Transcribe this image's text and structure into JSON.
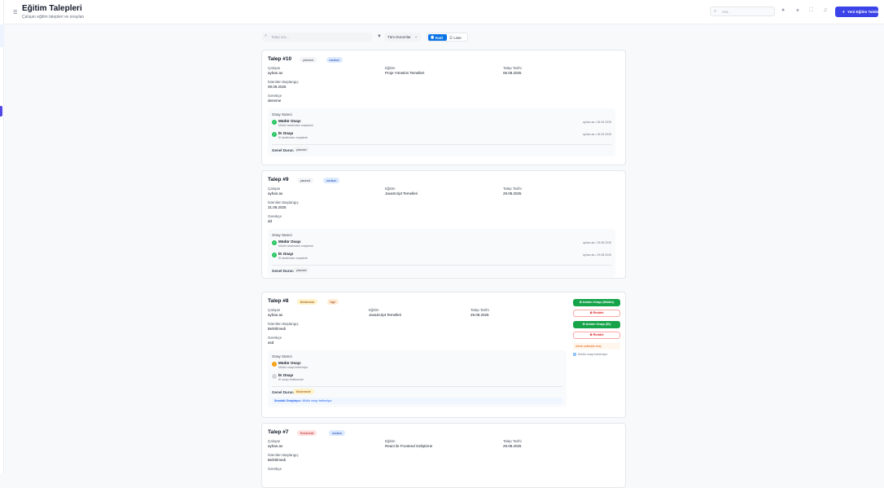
{
  "header": {
    "title": "Eğitim Talepleri",
    "subtitle": "Çalışan eğitim talepleri ve onayları",
    "search_placeholder": "Ara...",
    "new_button": "Yeni Eğitim Talebi"
  },
  "filters": {
    "search_placeholder": "Talep ara...",
    "status_select": "Tüm Durumlar",
    "view_card": "Kart",
    "view_list": "Liste"
  },
  "labels": {
    "employee": "Çalışan",
    "training": "Eğitim",
    "request_date": "Talep Tarihi",
    "desired_start": "İstenilen Başlangıç",
    "reason": "Gerekçe",
    "process": "Onay Süreci",
    "general_status": "Genel Durum:",
    "next_approver": "Sıradaki Onaylayıcı:",
    "approve_manager": "Admin Onayı (Müdür)",
    "approve_hr": "Admin Onayı (İK)",
    "reject": "Reddet",
    "admin_note": "Admin yetkisiyle onay",
    "manager_waiting_note": "Müdür onayı bekleniyor"
  },
  "cards": [
    {
      "title": "Talep #10",
      "status": "planned",
      "priority": "medium",
      "employee": "ayhan.as",
      "training": "Proje Yönetimi Temelleri",
      "request_date": "06.09.2025",
      "desired_start": "09.09.2025",
      "reason": "deneme",
      "steps": [
        {
          "name": "Müdür Onayı",
          "desc": "Müdür tarafından onaylandı",
          "meta": "ayhan.as • 06.09.2025",
          "state": "approved"
        },
        {
          "name": "İK Onayı",
          "desc": "İK tarafından onaylandı",
          "meta": "ayhan.as • 06.09.2025",
          "state": "approved"
        }
      ],
      "general": "planned"
    },
    {
      "title": "Talep #9",
      "status": "planned",
      "priority": "medium",
      "employee": "ayhan.as",
      "training": "JavaScript Temelleri",
      "request_date": "29.08.2025",
      "desired_start": "31.08.2025",
      "reason": "dd",
      "steps": [
        {
          "name": "Müdür Onayı",
          "desc": "Müdür tarafından onaylandı",
          "meta": "ayhan.as • 29.08.2025",
          "state": "approved"
        },
        {
          "name": "İK Onayı",
          "desc": "İK tarafından onaylandı",
          "meta": "ayhan.as • 29.08.2025",
          "state": "approved"
        }
      ],
      "general": "planned"
    },
    {
      "title": "Talep #8",
      "status": "Beklemede",
      "priority": "high",
      "employee": "ayhan.as",
      "training": "JavaScript Temelleri",
      "request_date": "29.08.2025",
      "desired_start": "Belirtilmedi",
      "reason": "asd",
      "steps": [
        {
          "name": "Müdür Onayı",
          "desc": "Müdür onayı bekleniyor",
          "state": "pending"
        },
        {
          "name": "İK Onayı",
          "desc": "İK onayı beklemede",
          "state": "waiting"
        }
      ],
      "general": "Beklemede",
      "next": "Müdür onayı bekleniyor"
    },
    {
      "title": "Talep #7",
      "status": "Reddedildi",
      "priority": "medium",
      "employee": "ayhan.as",
      "training": "React ile Frontend Geliştirme",
      "request_date": "29.08.2025",
      "desired_start": "Belirtilmedi"
    }
  ],
  "colors": {
    "primary": "#3b42e8",
    "approve": "#16a34a",
    "reject": "#dc2626",
    "active_view": "#0b74e5"
  }
}
